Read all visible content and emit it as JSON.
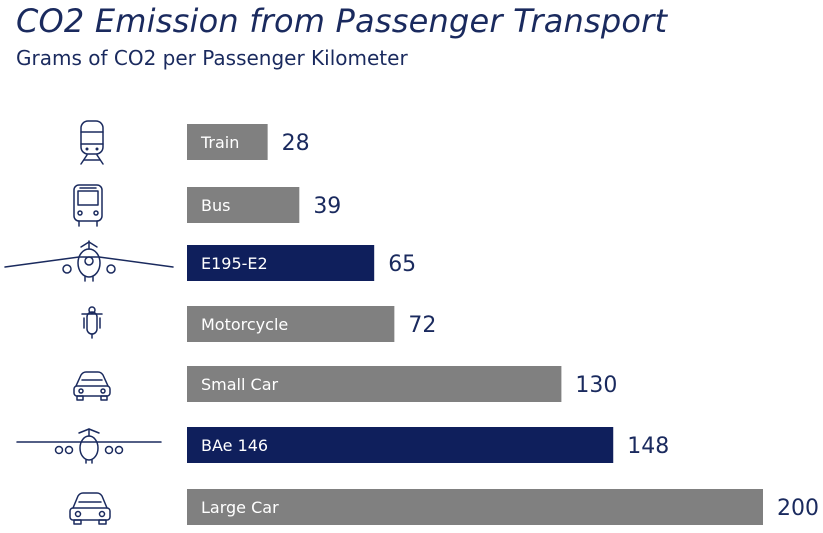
{
  "chart_data": {
    "type": "bar",
    "orientation": "horizontal",
    "title": "CO2 Emission from Passenger Transport",
    "subtitle": "Grams of CO2 per Passenger Kilometer",
    "categories": [
      "Train",
      "Bus",
      "E195-E2",
      "Motorcycle",
      "Small Car",
      "BAe 146",
      "Large Car"
    ],
    "values": [
      28,
      39,
      65,
      72,
      130,
      148,
      200
    ],
    "icons": [
      "train-icon",
      "bus-icon",
      "jet-aircraft-icon",
      "motorcycle-icon",
      "small-car-icon",
      "four-engine-aircraft-icon",
      "large-car-icon"
    ],
    "highlighted": [
      false,
      false,
      true,
      false,
      false,
      true,
      false
    ],
    "xlim": [
      0,
      200
    ],
    "grid": false,
    "legend": "none",
    "colors": {
      "default": "#808080",
      "highlight": "#0f1f5c",
      "text": "#1a2a5e"
    }
  }
}
